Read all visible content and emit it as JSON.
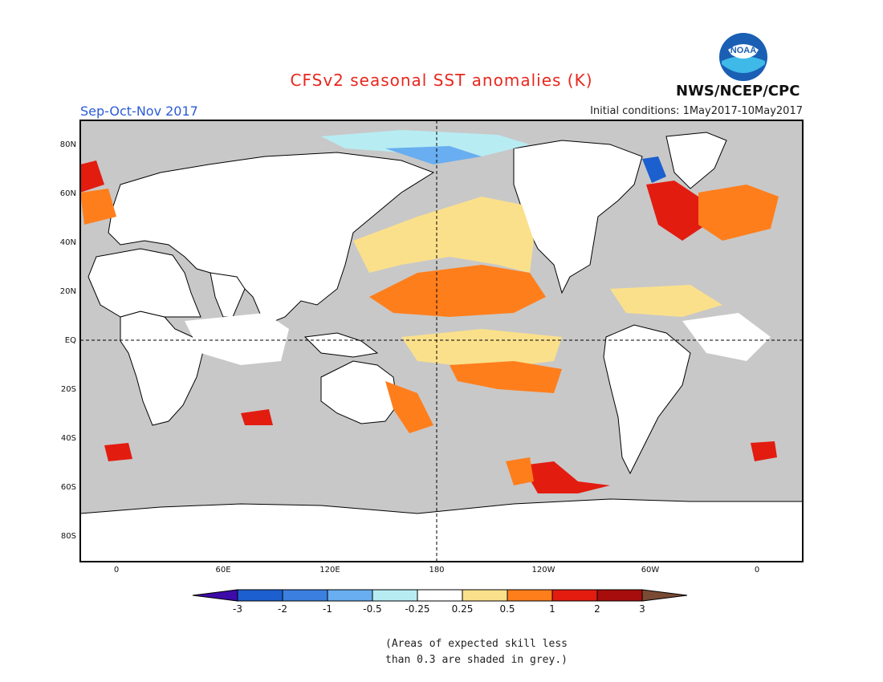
{
  "header": {
    "title": "CFSv2 seasonal SST anomalies (K)",
    "season": "Sep-Oct-Nov 2017",
    "initial_conditions": "Initial conditions: 1May2017-10May2017",
    "org": "NWS/NCEP/CPC",
    "logo_text": "NOAA"
  },
  "map": {
    "lat_labels": [
      "80N",
      "60N",
      "40N",
      "20N",
      "EQ",
      "20S",
      "40S",
      "60S",
      "80S"
    ],
    "lon_labels": [
      "0",
      "60E",
      "120E",
      "180",
      "120W",
      "60W",
      "0"
    ],
    "colors": {
      "land": "#ffffff",
      "grey_low_skill": "#c8c8c8",
      "coast": "#000000"
    }
  },
  "colorbar": {
    "labels": [
      "-3",
      "-2",
      "-1",
      "-0.5",
      "-0.25",
      "0.25",
      "0.5",
      "1",
      "2",
      "3"
    ],
    "colors": [
      "#3d0ba8",
      "#1c5fcf",
      "#3b7fe0",
      "#68aef0",
      "#b8ecf3",
      "#ffffff",
      "#fbe08b",
      "#ff7e1c",
      "#e31c10",
      "#a80d0d",
      "#7a4a35"
    ]
  },
  "note": {
    "line1": "(Areas of expected skill less",
    "line2": "than 0.3 are shaded in grey.)"
  }
}
